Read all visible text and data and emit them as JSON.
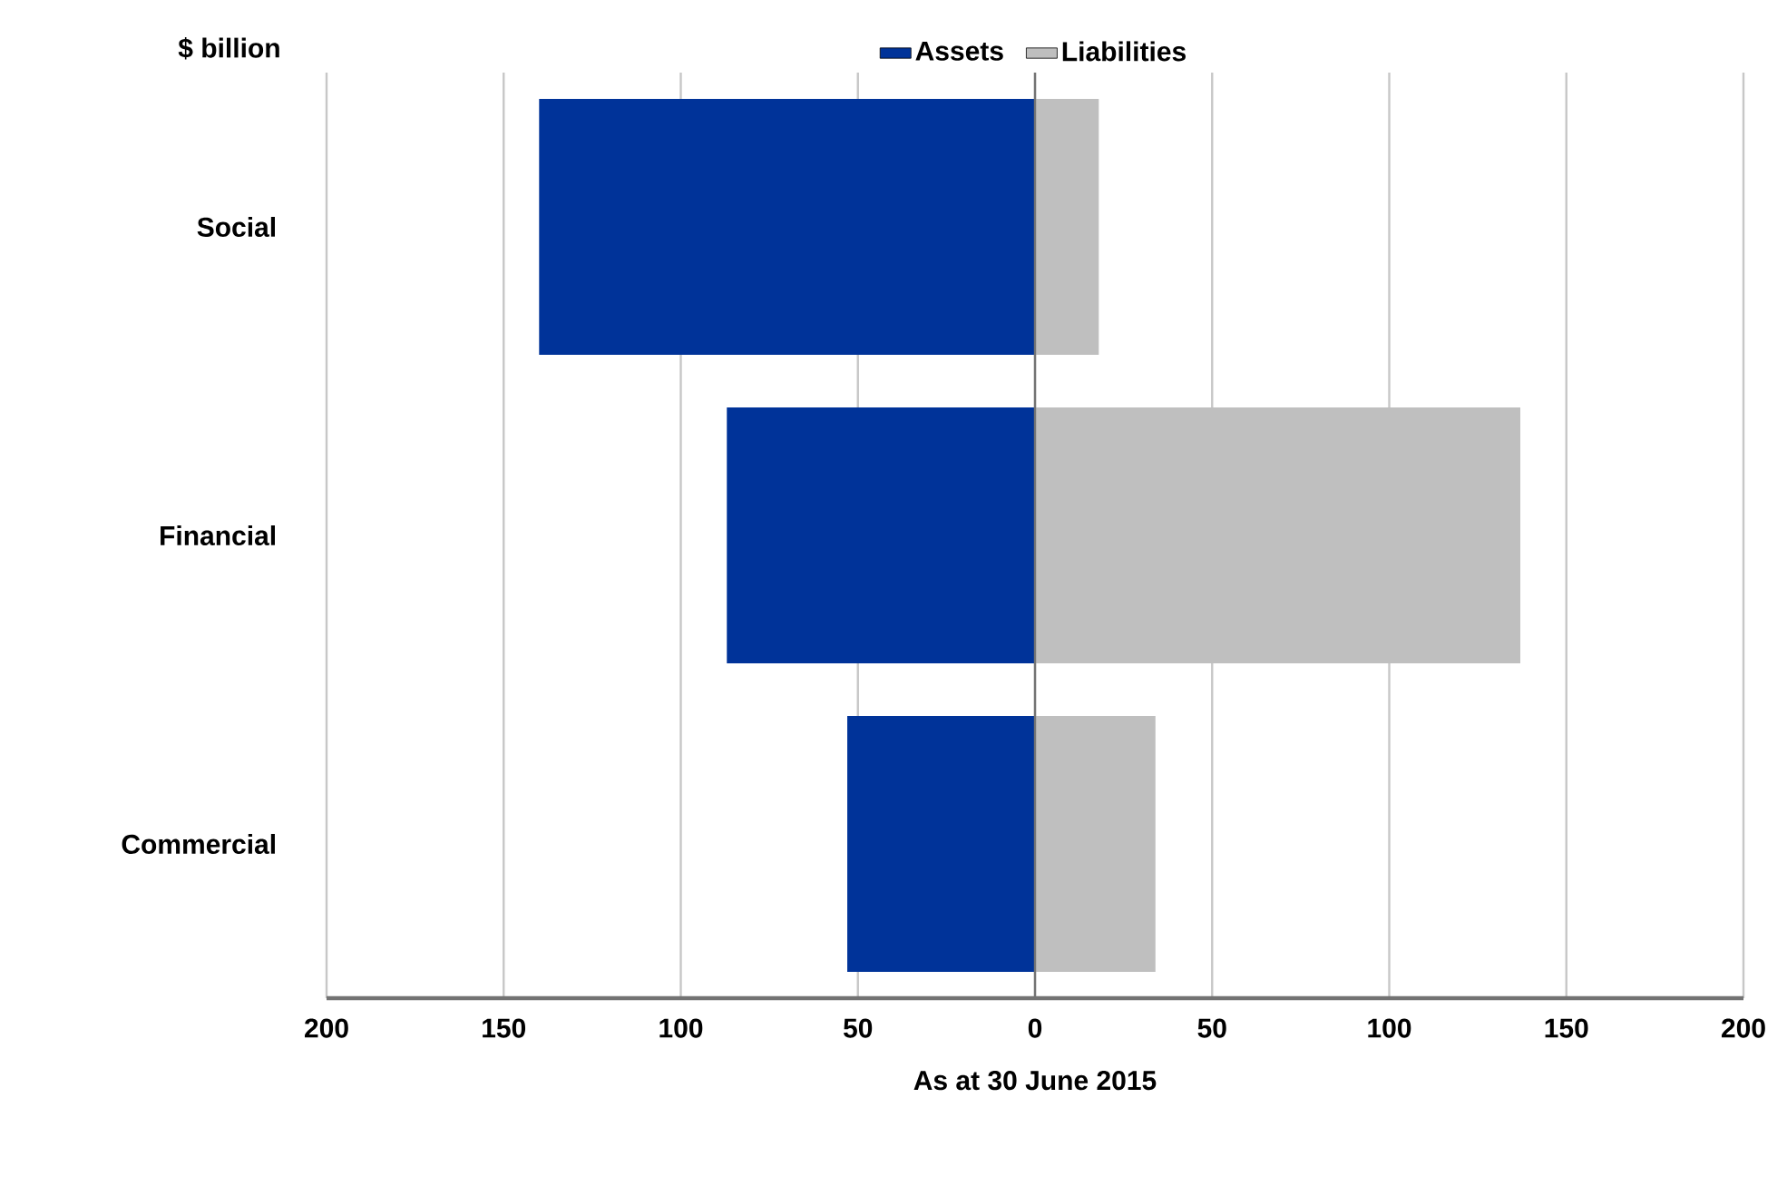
{
  "chart_data": {
    "type": "bar",
    "orientation": "horizontal",
    "ylabel": "$ billion",
    "xlabel": "As at 30 June 2015",
    "categories": [
      "Social",
      "Financial",
      "Commercial"
    ],
    "series": [
      {
        "name": "Assets",
        "color": "#003399",
        "values": [
          -140,
          -87,
          -53
        ]
      },
      {
        "name": "Liabilities",
        "color": "#bfbfbf",
        "values": [
          18,
          137,
          34
        ]
      }
    ],
    "xlim": [
      -200,
      200
    ],
    "xticks": [
      {
        "value": -200,
        "label": "200"
      },
      {
        "value": -150,
        "label": "150"
      },
      {
        "value": -100,
        "label": "100"
      },
      {
        "value": -50,
        "label": "50"
      },
      0,
      50,
      100,
      150,
      200
    ],
    "grid": "x",
    "legend": "top",
    "stacked": true
  }
}
